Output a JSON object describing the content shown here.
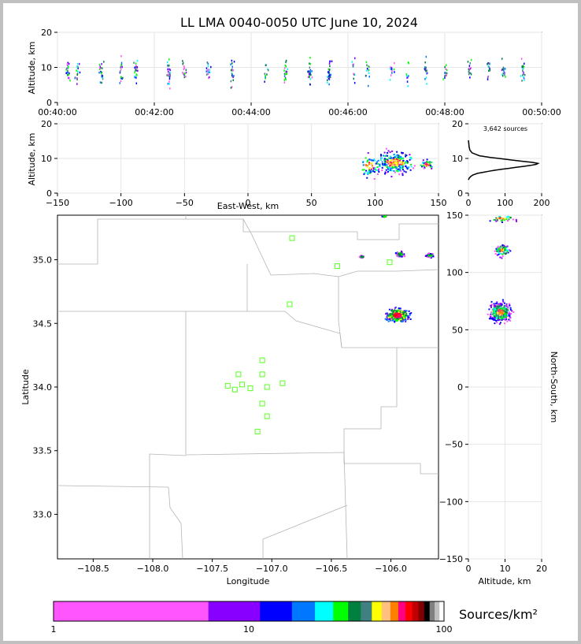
{
  "chart_data": [
    {
      "type": "scatter",
      "panel": "altitude-vs-time",
      "title": "LL LMA 0040-0050 UTC June 10, 2024",
      "xlabel": "",
      "ylabel": "Altitude, km",
      "xlim": [
        "00:40:00",
        "00:50:00"
      ],
      "ylim": [
        0,
        20
      ],
      "xticks": [
        "00:40:00",
        "00:42:00",
        "00:44:00",
        "00:46:00",
        "00:48:00",
        "00:50:00"
      ],
      "yticks": [
        "0",
        "10",
        "20"
      ],
      "series_times_min": [
        0.2,
        0.4,
        0.9,
        1.3,
        1.6,
        2.3,
        2.6,
        3.1,
        3.6,
        4.3,
        4.7,
        5.2,
        5.6,
        6.1,
        6.4,
        6.9,
        7.2,
        7.6,
        8.0,
        8.5,
        8.9,
        9.2,
        9.6
      ]
    },
    {
      "type": "scatter",
      "panel": "altitude-vs-east-west",
      "xlabel": "East-West, km",
      "ylabel": "Altitude, km",
      "xlim": [
        -150,
        150
      ],
      "ylim": [
        0,
        20
      ],
      "xticks": [
        "−150",
        "−100",
        "−50",
        "0",
        "50",
        "100",
        "150"
      ],
      "yticks": [
        "0",
        "10",
        "20"
      ]
    },
    {
      "type": "line",
      "panel": "altitude-histogram",
      "annotation": "3,642 sources",
      "xlim": [
        0,
        200
      ],
      "ylim": [
        0,
        21
      ],
      "xticks": [
        "0",
        "100",
        "200"
      ],
      "yticks": [
        "0",
        "10",
        "20"
      ],
      "x": [
        0,
        2,
        6,
        12,
        25,
        40,
        55,
        70,
        90,
        110,
        130,
        150,
        170,
        185,
        190,
        175,
        150,
        120,
        90,
        60,
        30,
        10,
        4,
        2,
        1,
        0
      ],
      "y": [
        4,
        4.5,
        5,
        5.5,
        6,
        6.3,
        6.6,
        6.9,
        7.2,
        7.5,
        7.8,
        8.1,
        8.4,
        8.7,
        9,
        9.3,
        9.6,
        10,
        10.4,
        10.8,
        11.3,
        12.2,
        13,
        14,
        15,
        16
      ]
    },
    {
      "type": "scatter",
      "panel": "plan-view",
      "xlabel": "Longitude",
      "ylabel": "Latitude",
      "xlim": [
        -108.8,
        -105.6
      ],
      "ylim": [
        32.65,
        35.35
      ],
      "xticks": [
        "−108.5",
        "−108.0",
        "−107.5",
        "−107.0",
        "−106.5",
        "−106.0"
      ],
      "yticks": [
        "33.0",
        "33.5",
        "34.0",
        "34.5",
        "35.0"
      ],
      "stations": [
        {
          "lon": -106.83,
          "lat": 35.17
        },
        {
          "lon": -106.45,
          "lat": 34.95
        },
        {
          "lon": -106.01,
          "lat": 34.98
        },
        {
          "lon": -106.85,
          "lat": 34.65
        },
        {
          "lon": -107.08,
          "lat": 34.21
        },
        {
          "lon": -107.28,
          "lat": 34.1
        },
        {
          "lon": -107.08,
          "lat": 34.1
        },
        {
          "lon": -107.37,
          "lat": 34.01
        },
        {
          "lon": -107.25,
          "lat": 34.02
        },
        {
          "lon": -107.31,
          "lat": 33.98
        },
        {
          "lon": -107.18,
          "lat": 33.99
        },
        {
          "lon": -107.04,
          "lat": 34.0
        },
        {
          "lon": -106.91,
          "lat": 34.03
        },
        {
          "lon": -107.08,
          "lat": 33.87
        },
        {
          "lon": -107.04,
          "lat": 33.77
        },
        {
          "lon": -107.12,
          "lat": 33.65
        }
      ],
      "clusters": [
        {
          "lon": -105.95,
          "lat": 34.57,
          "size": 0.15,
          "intensity": "high"
        },
        {
          "lon": -105.93,
          "lat": 35.05,
          "size": 0.06,
          "intensity": "medium"
        },
        {
          "lon": -105.68,
          "lat": 35.04,
          "size": 0.05,
          "intensity": "medium"
        },
        {
          "lon": -106.06,
          "lat": 35.35,
          "size": 0.04,
          "intensity": "low"
        },
        {
          "lon": -106.25,
          "lat": 35.03,
          "size": 0.03,
          "intensity": "low"
        }
      ]
    },
    {
      "type": "scatter",
      "panel": "north-south-vs-altitude",
      "xlabel": "Altitude, km",
      "ylabel": "North-South, km",
      "xlim": [
        0,
        20
      ],
      "ylim": [
        -150,
        150
      ],
      "xticks": [
        "0",
        "10",
        "20"
      ],
      "yticks": [
        "−150",
        "−100",
        "−50",
        "0",
        "50",
        "100",
        "150"
      ]
    },
    {
      "type": "heatmap",
      "panel": "colorbar",
      "label": "Sources/km²",
      "scale": "log",
      "range": [
        1,
        100
      ],
      "ticks": [
        "1",
        "10",
        "100"
      ],
      "colors": [
        "#ff55ff",
        "#8800ff",
        "#0000ff",
        "#0077ff",
        "#00ffff",
        "#00ff00",
        "#007f3f",
        "#408080",
        "#ffff00",
        "#ffc080",
        "#ff8000",
        "#ff0080",
        "#ff0000",
        "#c00000",
        "#800000",
        "#000000",
        "#808080",
        "#c0c0c0",
        "#ffffff"
      ]
    }
  ]
}
